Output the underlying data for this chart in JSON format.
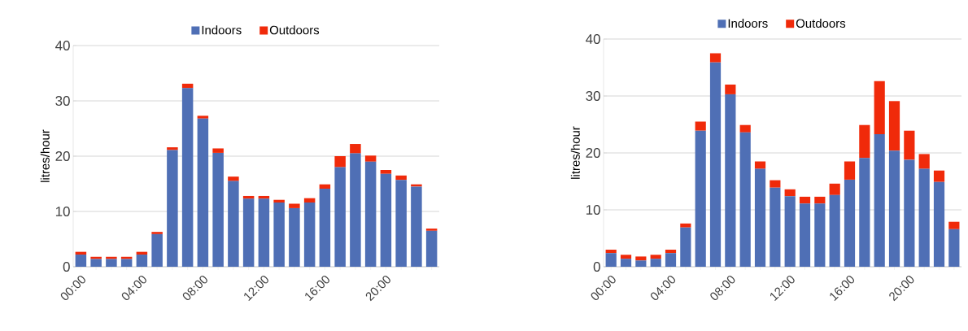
{
  "chart_data": [
    {
      "type": "bar",
      "stacked": true,
      "ylabel": "litres/hour",
      "categories": [
        "00:00",
        null,
        null,
        null,
        "04:00",
        null,
        null,
        null,
        "08:00",
        null,
        null,
        null,
        "12:00",
        null,
        null,
        null,
        "16:00",
        null,
        null,
        null,
        "20:00",
        null,
        null,
        null
      ],
      "series": [
        {
          "name": "Indoors",
          "color": "#4f6fb5",
          "values": [
            2.2,
            1.4,
            1.4,
            1.4,
            2.2,
            5.9,
            21.1,
            32.3,
            26.8,
            20.6,
            15.5,
            12.3,
            12.3,
            11.6,
            10.6,
            11.6,
            14.1,
            18.0,
            20.5,
            19.0,
            16.8,
            15.7,
            14.5,
            6.5
          ]
        },
        {
          "name": "Outdoors",
          "color": "#f02a0a",
          "values": [
            0.5,
            0.4,
            0.4,
            0.4,
            0.5,
            0.4,
            0.5,
            0.8,
            0.5,
            0.8,
            0.8,
            0.5,
            0.5,
            0.5,
            0.8,
            0.8,
            0.8,
            2.0,
            1.7,
            1.1,
            0.7,
            0.8,
            0.4,
            0.4
          ]
        }
      ],
      "ylim": [
        0,
        40
      ],
      "yticks": [
        0,
        10,
        20,
        30,
        40
      ],
      "grid": "y",
      "legend": "top"
    },
    {
      "type": "bar",
      "stacked": true,
      "ylabel": "litres/hour",
      "categories": [
        "00:00",
        null,
        null,
        null,
        "04:00",
        null,
        null,
        null,
        "08:00",
        null,
        null,
        null,
        "12:00",
        null,
        null,
        null,
        "16:00",
        null,
        null,
        null,
        "20:00",
        null,
        null,
        null
      ],
      "series": [
        {
          "name": "Indoors",
          "color": "#4f6fb5",
          "values": [
            2.4,
            1.4,
            1.1,
            1.4,
            2.4,
            6.9,
            23.9,
            35.9,
            30.3,
            23.6,
            17.2,
            13.9,
            12.4,
            11.1,
            11.1,
            12.6,
            15.3,
            19.1,
            23.3,
            20.4,
            18.8,
            17.2,
            14.9,
            6.6
          ]
        },
        {
          "name": "Outdoors",
          "color": "#f02a0a",
          "values": [
            0.6,
            0.7,
            0.7,
            0.7,
            0.6,
            0.7,
            1.6,
            1.6,
            1.7,
            1.3,
            1.3,
            1.3,
            1.2,
            1.2,
            1.2,
            2.0,
            3.2,
            5.8,
            9.3,
            8.7,
            5.1,
            2.6,
            2.0,
            1.3
          ]
        }
      ],
      "ylim": [
        0,
        40
      ],
      "yticks": [
        0,
        10,
        20,
        30,
        40
      ],
      "grid": "y",
      "legend": "top"
    }
  ]
}
